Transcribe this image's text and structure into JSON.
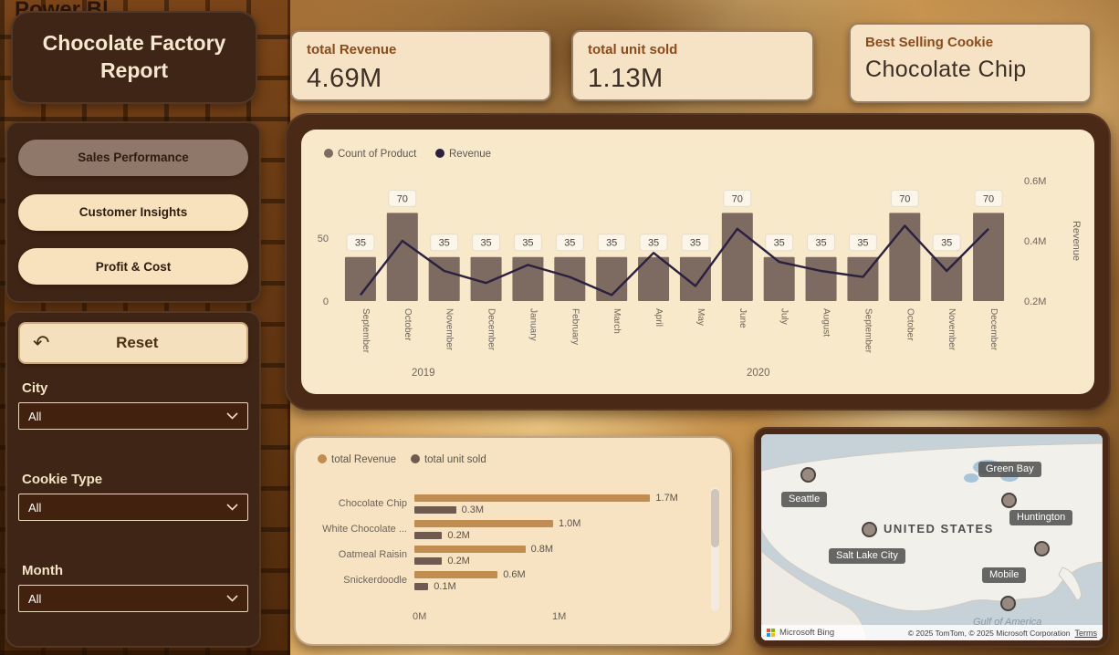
{
  "window": {
    "bg_text": "Power Bl"
  },
  "sidebar": {
    "title": "Chocolate Factory Report",
    "nav_items": [
      {
        "label": "Sales Performance",
        "active": true
      },
      {
        "label": "Customer Insights",
        "active": false
      },
      {
        "label": "Profit & Cost",
        "active": false
      }
    ],
    "reset_label": "Reset",
    "filters": [
      {
        "label": "City",
        "value": "All"
      },
      {
        "label": "Cookie Type",
        "value": "All"
      },
      {
        "label": "Month",
        "value": "All"
      }
    ]
  },
  "kpis": [
    {
      "title": "total Revenue",
      "value": "4.69M"
    },
    {
      "title": "total unit sold",
      "value": "1.13M"
    },
    {
      "title": "Best Selling Cookie",
      "value": "Chocolate Chip"
    }
  ],
  "chart_data": [
    {
      "type": "combo",
      "categories": [
        "September",
        "October",
        "November",
        "December",
        "January",
        "February",
        "March",
        "April",
        "May",
        "June",
        "July",
        "August",
        "September",
        "October",
        "November",
        "December"
      ],
      "year_groups": [
        {
          "label": "2019",
          "from": 0,
          "to": 3
        },
        {
          "label": "2020",
          "from": 4,
          "to": 15
        }
      ],
      "bar_series": {
        "name": "Count of Product",
        "color": "#7d6a60",
        "values": [
          35,
          70,
          35,
          35,
          35,
          35,
          35,
          35,
          35,
          70,
          35,
          35,
          35,
          70,
          35,
          70
        ]
      },
      "line_series": {
        "name": "Revenue",
        "color": "#2b2040",
        "unit": "M",
        "values_m": [
          0.22,
          0.4,
          0.3,
          0.26,
          0.32,
          0.28,
          0.22,
          0.36,
          0.25,
          0.44,
          0.33,
          0.3,
          0.28,
          0.45,
          0.3,
          0.44
        ]
      },
      "left_axis": {
        "ticks": [
          "0",
          "50"
        ]
      },
      "right_axis": {
        "title": "Revenue",
        "ticks": [
          "0.2M",
          "0.4M",
          "0.6M"
        ],
        "min_m": 0.2,
        "max_m": 0.6
      },
      "legend_position": "top-left",
      "grid": false
    },
    {
      "type": "bar",
      "orientation": "horizontal",
      "categories": [
        "Chocolate Chip",
        "White Chocolate ...",
        "Oatmeal Raisin",
        "Snickerdoodle"
      ],
      "series": [
        {
          "name": "total Revenue",
          "color": "#c08c4f",
          "values_m": [
            1.7,
            1.0,
            0.8,
            0.6
          ]
        },
        {
          "name": "total unit sold",
          "color": "#6e5a50",
          "values_m": [
            0.3,
            0.2,
            0.2,
            0.1
          ]
        }
      ],
      "x_ticks": [
        "0M",
        "1M"
      ],
      "x_tick_values_m": [
        0,
        1
      ],
      "legend_position": "top-left",
      "grid": false
    }
  ],
  "map": {
    "country_label": "UNITED STATES",
    "water_label": "Gulf of America",
    "cities": [
      {
        "name": "Green Bay",
        "tag": [
          238,
          30
        ],
        "bubble": [
          271,
          72
        ]
      },
      {
        "name": "Seattle",
        "tag": [
          22,
          63
        ],
        "bubble": [
          51,
          44
        ]
      },
      {
        "name": "Huntington",
        "tag": [
          272,
          83
        ],
        "bubble": [
          307,
          125
        ]
      },
      {
        "name": "Salt Lake City",
        "tag": [
          74,
          125
        ],
        "bubble": [
          118,
          104
        ]
      },
      {
        "name": "Mobile",
        "tag": [
          242,
          146
        ],
        "bubble": [
          270,
          185
        ]
      }
    ],
    "provider": "Microsoft Bing",
    "attribution": "© 2025 TomTom, © 2025 Microsoft Corporation",
    "terms_label": "Terms"
  }
}
